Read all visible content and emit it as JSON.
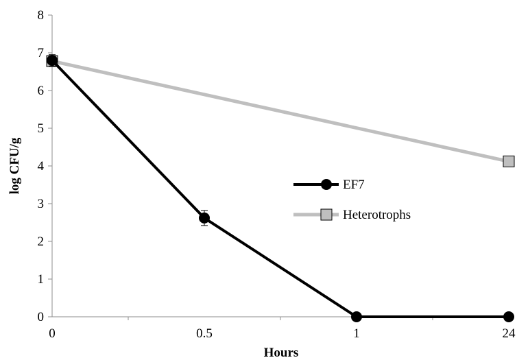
{
  "chart_data": {
    "type": "line",
    "categories": [
      "0",
      "0.5",
      "1",
      "24"
    ],
    "xlabel": "Hours",
    "ylabel": "log CFU/g",
    "ylim": [
      0,
      8
    ],
    "yticks": [
      "0",
      "1",
      "2",
      "3",
      "4",
      "5",
      "6",
      "7",
      "8"
    ],
    "grid": false,
    "legend_position": "right-middle",
    "series": [
      {
        "name": "EF7",
        "values": [
          6.8,
          2.62,
          0,
          0
        ],
        "error": [
          0.15,
          0.2,
          0,
          0
        ],
        "color": "#000000",
        "marker": "circle"
      },
      {
        "name": "Heterotrophs",
        "values": [
          6.78,
          null,
          null,
          4.12
        ],
        "color": "#bfbfbf",
        "marker_fill": "#bfbfbf",
        "marker_stroke": "#000000",
        "marker": "square"
      }
    ]
  }
}
